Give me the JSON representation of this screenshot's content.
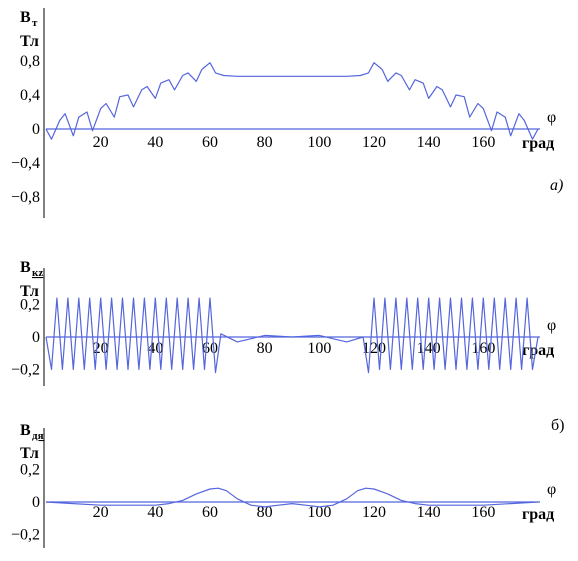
{
  "chart_data": [
    {
      "type": "line",
      "ylabel": [
        "B",
        "т",
        "Тл"
      ],
      "xlabel": [
        "φ",
        "град"
      ],
      "panel_label": "а)",
      "x_ticks": [
        "20",
        "40",
        "60",
        "80",
        "100",
        "120",
        "140",
        "160"
      ],
      "y_ticks": [
        "0,8",
        "0,4",
        "0",
        "−0,4",
        "−0,8"
      ],
      "y_tick_values": [
        0.8,
        0.4,
        0,
        -0.4,
        -0.8
      ],
      "xlim": [
        0,
        180
      ],
      "ylim": [
        -1.0,
        1.0
      ],
      "series": [
        {
          "color": "#5566dd",
          "x": [
            0,
            2,
            5,
            7,
            10,
            12,
            15,
            17,
            20,
            22,
            25,
            27,
            30,
            32,
            35,
            37,
            40,
            42,
            45,
            47,
            50,
            52,
            55,
            57,
            60,
            62,
            65,
            70,
            80,
            90,
            100,
            110,
            115,
            118,
            120,
            123,
            125,
            128,
            130,
            133,
            135,
            138,
            140,
            143,
            145,
            148,
            150,
            153,
            155,
            158,
            160,
            163,
            165,
            168,
            170,
            173,
            175,
            178,
            180
          ],
          "y": [
            0,
            -0.12,
            0.1,
            0.18,
            -0.08,
            0.14,
            0.2,
            -0.02,
            0.24,
            0.3,
            0.14,
            0.38,
            0.4,
            0.26,
            0.46,
            0.5,
            0.36,
            0.54,
            0.58,
            0.46,
            0.63,
            0.66,
            0.56,
            0.7,
            0.78,
            0.66,
            0.63,
            0.62,
            0.62,
            0.62,
            0.62,
            0.62,
            0.63,
            0.66,
            0.78,
            0.7,
            0.56,
            0.66,
            0.63,
            0.46,
            0.58,
            0.54,
            0.36,
            0.5,
            0.46,
            0.26,
            0.4,
            0.38,
            0.14,
            0.3,
            0.24,
            -0.02,
            0.2,
            0.14,
            -0.08,
            0.18,
            0.1,
            -0.12,
            0
          ]
        }
      ]
    },
    {
      "type": "line",
      "ylabel": [
        "B",
        "кz",
        "Тл"
      ],
      "xlabel": [
        "φ",
        "град"
      ],
      "x_ticks": [
        "20",
        "40",
        "60",
        "80",
        "100",
        "120",
        "140",
        "160"
      ],
      "y_ticks": [
        "0,2",
        "0",
        "−0,2"
      ],
      "y_tick_values": [
        0.2,
        0,
        -0.2
      ],
      "xlim": [
        0,
        180
      ],
      "ylim": [
        -0.25,
        0.3
      ],
      "series": [
        {
          "color": "#5566dd",
          "x": [
            0,
            2,
            4,
            6,
            8,
            10,
            12,
            14,
            16,
            18,
            20,
            22,
            24,
            26,
            28,
            30,
            32,
            34,
            36,
            38,
            40,
            42,
            44,
            46,
            48,
            50,
            52,
            54,
            56,
            58,
            60,
            62,
            64,
            70,
            80,
            90,
            100,
            110,
            116,
            118,
            120,
            122,
            124,
            126,
            128,
            130,
            132,
            134,
            136,
            138,
            140,
            142,
            144,
            146,
            148,
            150,
            152,
            154,
            156,
            158,
            160,
            162,
            164,
            166,
            168,
            170,
            172,
            174,
            176,
            178,
            180
          ],
          "y": [
            0,
            -0.2,
            0.24,
            -0.2,
            0.24,
            -0.2,
            0.24,
            -0.2,
            0.24,
            -0.2,
            0.24,
            -0.2,
            0.24,
            -0.2,
            0.24,
            -0.2,
            0.24,
            -0.2,
            0.24,
            -0.2,
            0.24,
            -0.2,
            0.24,
            -0.2,
            0.24,
            -0.2,
            0.24,
            -0.2,
            0.24,
            -0.2,
            0.24,
            -0.22,
            0.02,
            -0.03,
            0.01,
            0.0,
            0.01,
            -0.03,
            0.0,
            -0.22,
            0.24,
            -0.2,
            0.24,
            -0.2,
            0.24,
            -0.2,
            0.24,
            -0.2,
            0.24,
            -0.2,
            0.24,
            -0.2,
            0.24,
            -0.2,
            0.24,
            -0.2,
            0.24,
            -0.2,
            0.24,
            -0.2,
            0.24,
            -0.2,
            0.24,
            -0.2,
            0.24,
            -0.2,
            0.24,
            -0.2,
            0.24,
            -0.2,
            0
          ]
        }
      ]
    },
    {
      "type": "line",
      "ylabel": [
        "B",
        "дя",
        "Тл"
      ],
      "xlabel": [
        "φ",
        "град"
      ],
      "panel_label": "б)",
      "x_ticks": [
        "20",
        "40",
        "60",
        "80",
        "100",
        "120",
        "140",
        "160"
      ],
      "y_ticks": [
        "0,2",
        "0",
        "−0,2"
      ],
      "y_tick_values": [
        0.2,
        0,
        -0.2
      ],
      "xlim": [
        0,
        180
      ],
      "ylim": [
        -0.25,
        0.3
      ],
      "series": [
        {
          "color": "#5566dd",
          "x": [
            0,
            10,
            20,
            30,
            40,
            45,
            50,
            55,
            60,
            63,
            66,
            70,
            75,
            80,
            85,
            90,
            95,
            100,
            105,
            110,
            114,
            117,
            120,
            125,
            130,
            135,
            140,
            150,
            160,
            170,
            180
          ],
          "y": [
            0.0,
            -0.01,
            -0.02,
            -0.02,
            -0.02,
            -0.01,
            0.01,
            0.05,
            0.08,
            0.085,
            0.07,
            0.02,
            -0.02,
            -0.03,
            -0.02,
            -0.01,
            -0.02,
            -0.03,
            -0.02,
            0.02,
            0.07,
            0.085,
            0.08,
            0.05,
            0.01,
            -0.01,
            -0.02,
            -0.02,
            -0.02,
            -0.01,
            0.0
          ]
        }
      ]
    }
  ]
}
